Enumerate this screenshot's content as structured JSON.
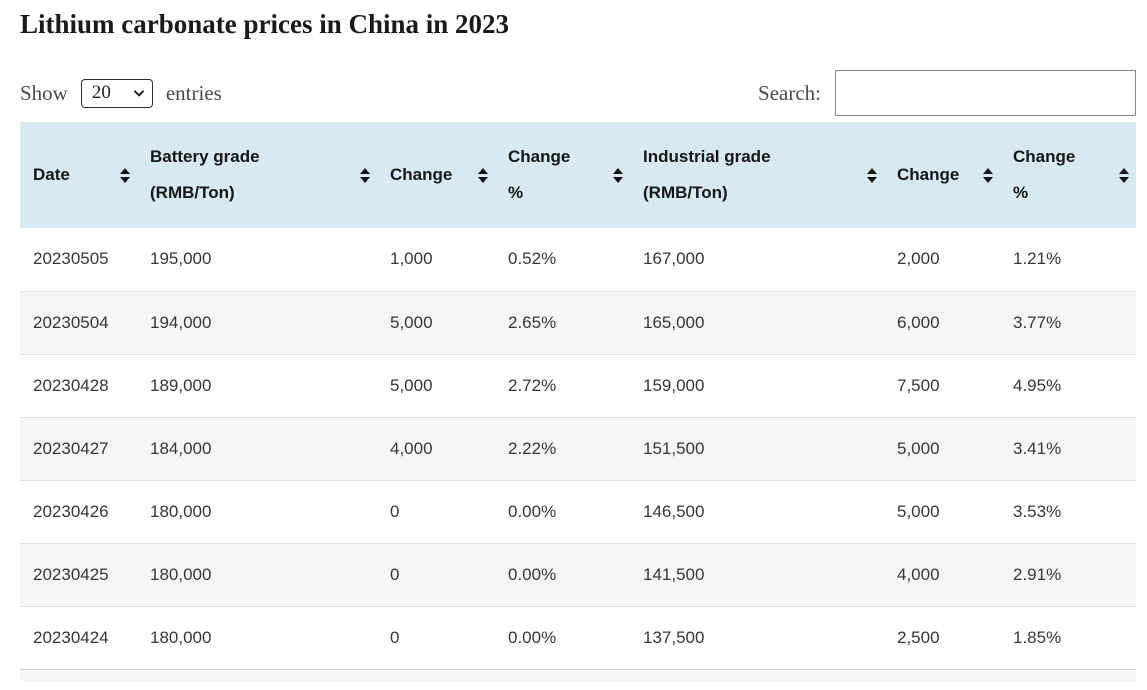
{
  "page": {
    "title": "Lithium carbonate prices in China in 2023"
  },
  "controls": {
    "show_label": "Show",
    "page_length": "20",
    "entries_label": "entries",
    "search_label": "Search:",
    "search_value": ""
  },
  "table": {
    "columns": [
      {
        "label": "Date"
      },
      {
        "label": "Battery grade (RMB/Ton)"
      },
      {
        "label": "Change"
      },
      {
        "label": "Change %"
      },
      {
        "label": "Industrial grade (RMB/Ton)"
      },
      {
        "label": "Change"
      },
      {
        "label": "Change %"
      }
    ],
    "rows": [
      [
        "20230505",
        "195,000",
        "1,000",
        "0.52%",
        "167,000",
        "2,000",
        "1.21%"
      ],
      [
        "20230504",
        "194,000",
        "5,000",
        "2.65%",
        "165,000",
        "6,000",
        "3.77%"
      ],
      [
        "20230428",
        "189,000",
        "5,000",
        "2.72%",
        "159,000",
        "7,500",
        "4.95%"
      ],
      [
        "20230427",
        "184,000",
        "4,000",
        "2.22%",
        "151,500",
        "5,000",
        "3.41%"
      ],
      [
        "20230426",
        "180,000",
        "0",
        "0.00%",
        "146,500",
        "5,000",
        "3.53%"
      ],
      [
        "20230425",
        "180,000",
        "0",
        "0.00%",
        "141,500",
        "4,000",
        "2.91%"
      ],
      [
        "20230424",
        "180,000",
        "0",
        "0.00%",
        "137,500",
        "2,500",
        "1.85%"
      ]
    ]
  },
  "colors": {
    "header_bg": "#d7eaf3",
    "stripe_bg": "#f6f6f6",
    "row_border": "#e0e0e0",
    "text_dark": "#1a1a1a",
    "text_cell": "#363636",
    "text_muted": "#4a4a4a"
  }
}
